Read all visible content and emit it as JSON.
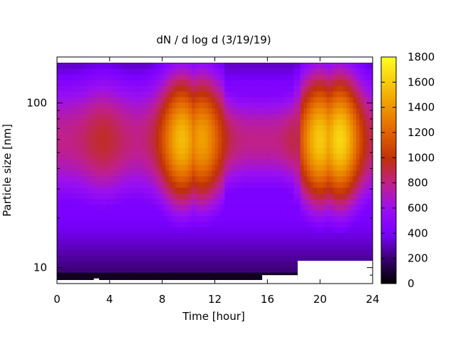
{
  "chart_data": {
    "type": "heatmap",
    "title": "dN / d log d (3/19/19)",
    "xlabel": "Time [hour]",
    "ylabel": "Particle size [nm]",
    "xlim": [
      0,
      24
    ],
    "ylim": [
      8,
      190
    ],
    "yscale": "log",
    "x_ticks": [
      0,
      4,
      8,
      12,
      16,
      20,
      24
    ],
    "x_tick_labels": [
      "0",
      "4",
      "8",
      "12",
      "16",
      "20",
      "24"
    ],
    "y_ticks": [
      10,
      100
    ],
    "y_tick_labels": [
      "10",
      "100"
    ],
    "colorbar": {
      "range": [
        0,
        1800
      ],
      "ticks": [
        0,
        200,
        400,
        600,
        800,
        1000,
        1200,
        1400,
        1600,
        1800
      ],
      "tick_labels": [
        "0",
        "200",
        "400",
        "600",
        "800",
        "1000",
        "1200",
        "1400",
        "1600",
        "1800"
      ],
      "palette": [
        "#000000",
        "#3a0070",
        "#7a00ff",
        "#a020e0",
        "#c0208a",
        "#c0300a",
        "#e06000",
        "#f0a000",
        "#ffff20"
      ]
    },
    "peak_modes": [
      {
        "time_hour": 9.5,
        "diameter_nm": 55,
        "value": 1550
      },
      {
        "time_hour": 11.0,
        "diameter_nm": 60,
        "value": 1450
      },
      {
        "time_hour": 20.0,
        "diameter_nm": 60,
        "value": 1600
      },
      {
        "time_hour": 21.5,
        "diameter_nm": 70,
        "value": 1650
      }
    ],
    "no_data_regions": [
      {
        "time_start": 2.8,
        "time_end": 3.2,
        "diameter_max_nm": 8.6
      },
      {
        "time_start": 15.6,
        "time_end": 18.3,
        "diameter_max_nm": 9.0
      },
      {
        "time_start": 18.3,
        "time_end": 24.0,
        "diameter_max_nm": 11.0
      }
    ]
  }
}
